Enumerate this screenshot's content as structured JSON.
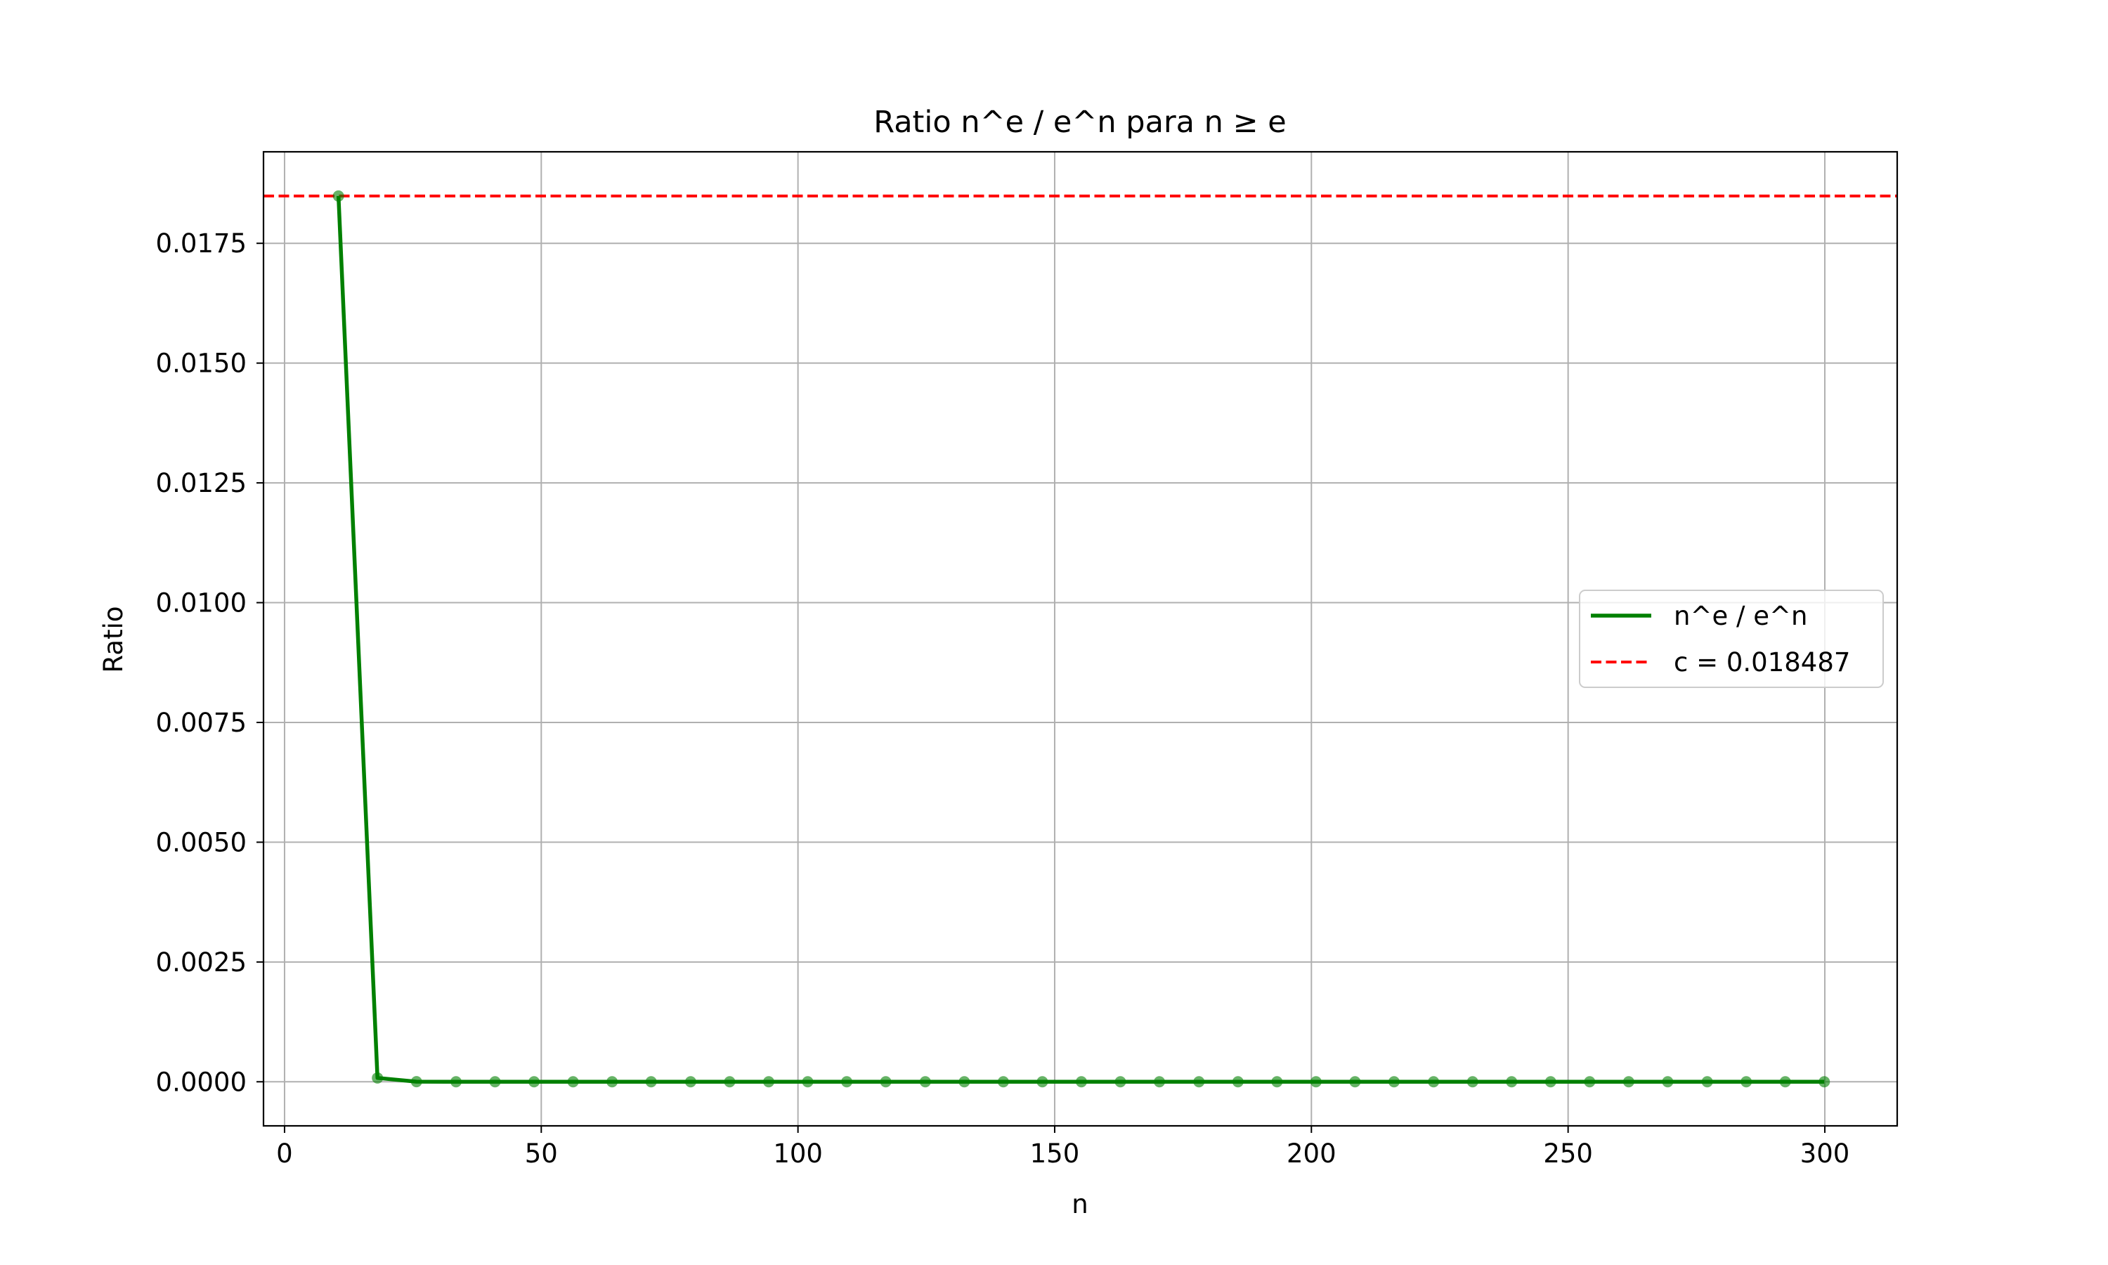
{
  "chart_data": {
    "type": "line",
    "title": "Ratio n^e / e^n para n ≥ e",
    "xlabel": "n",
    "ylabel": "Ratio",
    "xlim": [
      -4.1,
      314.1
    ],
    "ylim": [
      -0.00092,
      0.01941
    ],
    "xticks": [
      0,
      50,
      100,
      150,
      200,
      250,
      300
    ],
    "xtick_labels": [
      "0",
      "50",
      "100",
      "150",
      "200",
      "250",
      "300"
    ],
    "yticks": [
      0,
      0.0025,
      0.005,
      0.0075,
      0.01,
      0.0125,
      0.015,
      0.0175
    ],
    "ytick_labels": [
      "0.0000",
      "0.0025",
      "0.0050",
      "0.0075",
      "0.0100",
      "0.0125",
      "0.0150",
      "0.0175"
    ],
    "grid": true,
    "legend": {
      "position": "center-right"
    },
    "series": [
      {
        "name": "n^e / e^n",
        "color": "#008000",
        "style": "solid",
        "markers": true,
        "x": [
          10.5,
          18.1,
          25.7,
          33.4,
          41.0,
          48.6,
          56.2,
          63.8,
          71.4,
          79.1,
          86.7,
          94.3,
          101.9,
          109.5,
          117.1,
          124.8,
          132.4,
          140.0,
          147.6,
          155.2,
          162.8,
          170.4,
          178.1,
          185.7,
          193.3,
          200.9,
          208.5,
          216.1,
          223.8,
          231.4,
          239.0,
          246.6,
          254.2,
          261.8,
          269.4,
          277.1,
          284.7,
          292.3,
          299.9
        ],
        "y": [
          0.018487,
          8e-05,
          2.3e-06,
          5e-08,
          1e-09,
          0,
          0,
          0,
          0,
          0,
          0,
          0,
          0,
          0,
          0,
          0,
          0,
          0,
          0,
          0,
          0,
          0,
          0,
          0,
          0,
          0,
          0,
          0,
          0,
          0,
          0,
          0,
          0,
          0,
          0,
          0,
          0,
          0,
          0
        ]
      },
      {
        "name": "c = 0.018487",
        "color": "#ff0000",
        "style": "dashed",
        "type": "hline",
        "y": 0.018487
      }
    ]
  }
}
